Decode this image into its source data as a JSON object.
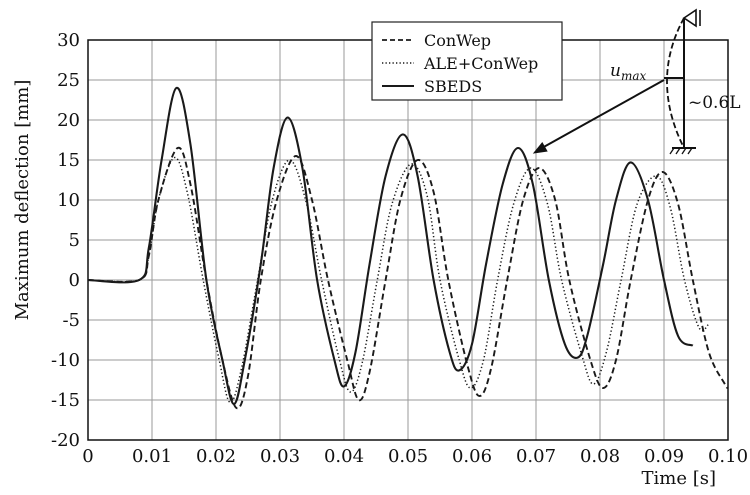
{
  "chart_data": {
    "type": "line",
    "xlabel": "Time [s]",
    "ylabel": "Maximum deflection [mm]",
    "xlim": [
      0,
      0.1
    ],
    "ylim": [
      -20,
      30
    ],
    "xticks": [
      0,
      0.01,
      0.02,
      0.03,
      0.04,
      0.05,
      0.06,
      0.07,
      0.08,
      0.09,
      0.1
    ],
    "xtick_labels": [
      "0",
      "0.01",
      "0.02",
      "0.03",
      "0.04",
      "0.05",
      "0.06",
      "0.07",
      "0.08",
      "0.09",
      "0.10"
    ],
    "yticks": [
      -20,
      -15,
      -10,
      -5,
      0,
      5,
      10,
      15,
      20,
      25,
      30
    ],
    "ytick_labels": [
      "-20",
      "-15",
      "-10",
      "-5",
      "0",
      "5",
      "10",
      "15",
      "20",
      "25",
      "30"
    ],
    "grid": true,
    "legend_position": "top-center",
    "series": [
      {
        "name": "ConWep",
        "style": "dashed",
        "color": "#1a1a1a",
        "x": [
          0,
          0.008,
          0.0095,
          0.011,
          0.014,
          0.016,
          0.0185,
          0.021,
          0.0232,
          0.025,
          0.027,
          0.0295,
          0.0325,
          0.035,
          0.0375,
          0.0405,
          0.0423,
          0.044,
          0.0465,
          0.0488,
          0.0515,
          0.054,
          0.0563,
          0.0594,
          0.0612,
          0.063,
          0.0655,
          0.068,
          0.0705,
          0.073,
          0.0752,
          0.0785,
          0.0805,
          0.0825,
          0.0848,
          0.0875,
          0.0898,
          0.0922,
          0.0945,
          0.097,
          0.0995,
          0.1
        ],
        "y": [
          0,
          0,
          3,
          10,
          16.5,
          12,
          0,
          -10,
          -16,
          -12,
          0,
          10,
          15.5,
          10,
          0,
          -10,
          -15,
          -11.5,
          0,
          10,
          15,
          11,
          0,
          -11,
          -14.5,
          -11,
          0,
          10,
          14,
          10,
          0,
          -10,
          -13.5,
          -10,
          0,
          10,
          13.5,
          9.5,
          0,
          -9,
          -13,
          -13.5
        ]
      },
      {
        "name": "ALE+ConWep",
        "style": "dotted",
        "color": "#1a1a1a",
        "x": [
          0,
          0.008,
          0.0095,
          0.011,
          0.0135,
          0.0155,
          0.018,
          0.0205,
          0.0222,
          0.024,
          0.0265,
          0.0288,
          0.0315,
          0.034,
          0.0365,
          0.0393,
          0.041,
          0.0428,
          0.0452,
          0.0475,
          0.0505,
          0.053,
          0.055,
          0.058,
          0.0598,
          0.0618,
          0.064,
          0.0665,
          0.0692,
          0.0718,
          0.074,
          0.0772,
          0.079,
          0.081,
          0.0833,
          0.0858,
          0.0888,
          0.091,
          0.0932,
          0.0955,
          0.097
        ],
        "y": [
          0,
          0,
          3,
          10,
          15.3,
          11,
          0,
          -10,
          -15.3,
          -11,
          0,
          10,
          15,
          10,
          0,
          -10,
          -14,
          -10.5,
          0,
          9.5,
          14.5,
          10.5,
          0,
          -10,
          -13.5,
          -10,
          0,
          9.5,
          14,
          9.5,
          0,
          -9.5,
          -13,
          -9,
          0,
          9.5,
          13,
          9,
          0,
          -6,
          -5.5
        ]
      },
      {
        "name": "SBEDS",
        "style": "solid",
        "color": "#1a1a1a",
        "x": [
          0,
          0.008,
          0.0095,
          0.0115,
          0.0138,
          0.016,
          0.0185,
          0.021,
          0.0228,
          0.0245,
          0.027,
          0.029,
          0.0312,
          0.0335,
          0.0358,
          0.0385,
          0.04,
          0.0418,
          0.044,
          0.0465,
          0.0492,
          0.0515,
          0.054,
          0.0565,
          0.058,
          0.06,
          0.0622,
          0.0648,
          0.0672,
          0.0695,
          0.072,
          0.0745,
          0.0765,
          0.078,
          0.0805,
          0.0825,
          0.0848,
          0.0875,
          0.09,
          0.0922,
          0.0945
        ],
        "y": [
          0,
          0,
          4,
          15,
          24,
          17,
          0,
          -10,
          -15.5,
          -10,
          2,
          14,
          20.3,
          14,
          0,
          -10,
          -13.3,
          -9,
          2,
          13,
          18.2,
          13,
          0,
          -9,
          -11.3,
          -8,
          2,
          12,
          16.5,
          12,
          0,
          -8,
          -9.7,
          -7,
          2,
          10,
          14.7,
          10,
          0,
          -7,
          -8.2
        ]
      }
    ],
    "annotations": {
      "umax_label": "u",
      "umax_subscript": "max",
      "length_label": "~0.6L",
      "arrow_target": {
        "x": 0.0695,
        "y": 15.8
      }
    }
  }
}
